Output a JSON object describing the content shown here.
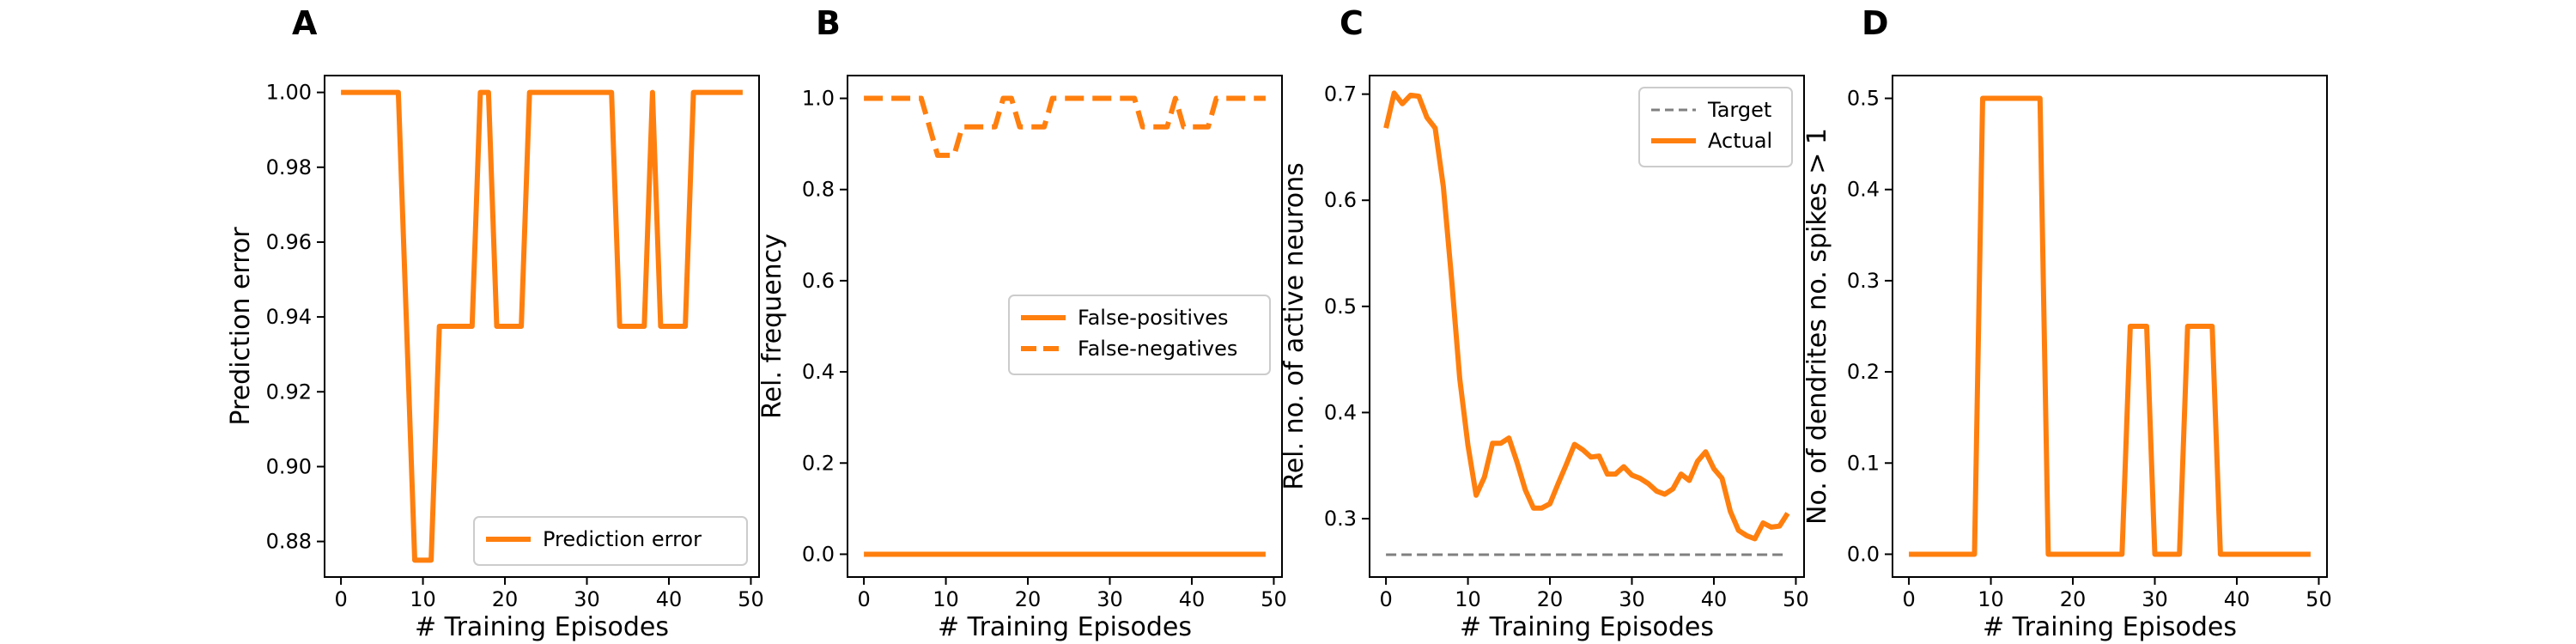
{
  "figure": {
    "background": "#ffffff",
    "accent": "#ff7f0e"
  },
  "chart_data": [
    {
      "panel": "A",
      "type": "line",
      "xlabel": "# Training Episodes",
      "ylabel": "Prediction error",
      "xlim": [
        -2,
        51
      ],
      "ylim": [
        0.8705,
        1.0045
      ],
      "xticks": [
        0,
        10,
        20,
        30,
        40,
        50
      ],
      "xtick_labels": [
        "0",
        "10",
        "20",
        "30",
        "40",
        "50"
      ],
      "yticks": [
        0.88,
        0.9,
        0.92,
        0.94,
        0.96,
        0.98,
        1.0
      ],
      "ytick_labels": [
        "0.88",
        "0.90",
        "0.92",
        "0.94",
        "0.96",
        "0.98",
        "1.00"
      ],
      "grid": false,
      "legend": {
        "placement": "lower-right"
      },
      "series": [
        {
          "name": "Prediction error",
          "color": "#ff7f0e",
          "style": "solid",
          "x": [
            0,
            1,
            2,
            3,
            4,
            5,
            6,
            7,
            8,
            9,
            10,
            11,
            12,
            13,
            14,
            15,
            16,
            17,
            18,
            19,
            20,
            21,
            22,
            23,
            24,
            25,
            26,
            27,
            28,
            29,
            30,
            31,
            32,
            33,
            34,
            35,
            36,
            37,
            38,
            39,
            40,
            41,
            42,
            43,
            44,
            45,
            46,
            47,
            48,
            49
          ],
          "y": [
            1,
            1,
            1,
            1,
            1,
            1,
            1,
            1,
            0.9375,
            0.875,
            0.875,
            0.875,
            0.9375,
            0.9375,
            0.9375,
            0.9375,
            0.9375,
            1,
            1,
            0.9375,
            0.9375,
            0.9375,
            0.9375,
            1,
            1,
            1,
            1,
            1,
            1,
            1,
            1,
            1,
            1,
            1,
            0.9375,
            0.9375,
            0.9375,
            0.9375,
            1,
            0.9375,
            0.9375,
            0.9375,
            0.9375,
            1,
            1,
            1,
            1,
            1,
            1,
            1
          ]
        }
      ]
    },
    {
      "panel": "B",
      "type": "line",
      "xlabel": "# Training Episodes",
      "ylabel": "Rel. frequency",
      "xlim": [
        -2,
        51
      ],
      "ylim": [
        -0.05,
        1.05
      ],
      "xticks": [
        0,
        10,
        20,
        30,
        40,
        50
      ],
      "xtick_labels": [
        "0",
        "10",
        "20",
        "30",
        "40",
        "50"
      ],
      "yticks": [
        0.0,
        0.2,
        0.4,
        0.6,
        0.8,
        1.0
      ],
      "ytick_labels": [
        "0.0",
        "0.2",
        "0.4",
        "0.6",
        "0.8",
        "1.0"
      ],
      "grid": false,
      "legend": {
        "placement": "center-right"
      },
      "series": [
        {
          "name": "False-positives",
          "color": "#ff7f0e",
          "style": "solid",
          "x": [
            0,
            1,
            2,
            3,
            4,
            5,
            6,
            7,
            8,
            9,
            10,
            11,
            12,
            13,
            14,
            15,
            16,
            17,
            18,
            19,
            20,
            21,
            22,
            23,
            24,
            25,
            26,
            27,
            28,
            29,
            30,
            31,
            32,
            33,
            34,
            35,
            36,
            37,
            38,
            39,
            40,
            41,
            42,
            43,
            44,
            45,
            46,
            47,
            48,
            49
          ],
          "y": [
            0,
            0,
            0,
            0,
            0,
            0,
            0,
            0,
            0,
            0,
            0,
            0,
            0,
            0,
            0,
            0,
            0,
            0,
            0,
            0,
            0,
            0,
            0,
            0,
            0,
            0,
            0,
            0,
            0,
            0,
            0,
            0,
            0,
            0,
            0,
            0,
            0,
            0,
            0,
            0,
            0,
            0,
            0,
            0,
            0,
            0,
            0,
            0,
            0,
            0
          ]
        },
        {
          "name": "False-negatives",
          "color": "#ff7f0e",
          "style": "dashed",
          "x": [
            0,
            1,
            2,
            3,
            4,
            5,
            6,
            7,
            8,
            9,
            10,
            11,
            12,
            13,
            14,
            15,
            16,
            17,
            18,
            19,
            20,
            21,
            22,
            23,
            24,
            25,
            26,
            27,
            28,
            29,
            30,
            31,
            32,
            33,
            34,
            35,
            36,
            37,
            38,
            39,
            40,
            41,
            42,
            43,
            44,
            45,
            46,
            47,
            48,
            49
          ],
          "y": [
            1,
            1,
            1,
            1,
            1,
            1,
            1,
            1,
            0.9375,
            0.875,
            0.875,
            0.875,
            0.9375,
            0.9375,
            0.9375,
            0.9375,
            0.9375,
            1,
            1,
            0.9375,
            0.9375,
            0.9375,
            0.9375,
            1,
            1,
            1,
            1,
            1,
            1,
            1,
            1,
            1,
            1,
            1,
            0.9375,
            0.9375,
            0.9375,
            0.9375,
            1,
            0.9375,
            0.9375,
            0.9375,
            0.9375,
            1,
            1,
            1,
            1,
            1,
            1,
            1
          ]
        }
      ]
    },
    {
      "panel": "C",
      "type": "line",
      "xlabel": "# Training Episodes",
      "ylabel": "Rel. no. of active neurons",
      "xlim": [
        -2,
        51
      ],
      "ylim": [
        0.245,
        0.7175
      ],
      "xticks": [
        0,
        10,
        20,
        30,
        40,
        50
      ],
      "xtick_labels": [
        "0",
        "10",
        "20",
        "30",
        "40",
        "50"
      ],
      "yticks": [
        0.3,
        0.4,
        0.5,
        0.6,
        0.7
      ],
      "ytick_labels": [
        "0.3",
        "0.4",
        "0.5",
        "0.6",
        "0.7"
      ],
      "grid": false,
      "legend": {
        "placement": "top-right"
      },
      "series": [
        {
          "name": "Target",
          "color": "#808080",
          "style": "dashed",
          "x": [
            0,
            49
          ],
          "y": [
            0.266,
            0.266
          ]
        },
        {
          "name": "Actual",
          "color": "#ff7f0e",
          "style": "solid",
          "x": [
            0,
            1,
            2,
            3,
            4,
            5,
            6,
            7,
            8,
            9,
            10,
            11,
            12,
            13,
            14,
            15,
            16,
            17,
            18,
            19,
            20,
            21,
            22,
            23,
            24,
            25,
            26,
            27,
            28,
            29,
            30,
            31,
            32,
            33,
            34,
            35,
            36,
            37,
            38,
            39,
            40,
            41,
            42,
            43,
            44,
            45,
            46,
            47,
            48,
            49
          ],
          "y": [
            0.668,
            0.701,
            0.691,
            0.699,
            0.698,
            0.678,
            0.668,
            0.613,
            0.526,
            0.432,
            0.369,
            0.322,
            0.339,
            0.371,
            0.371,
            0.376,
            0.353,
            0.327,
            0.31,
            0.31,
            0.314,
            0.333,
            0.351,
            0.37,
            0.365,
            0.358,
            0.359,
            0.342,
            0.342,
            0.349,
            0.341,
            0.338,
            0.333,
            0.326,
            0.323,
            0.328,
            0.342,
            0.336,
            0.354,
            0.363,
            0.347,
            0.338,
            0.307,
            0.289,
            0.284,
            0.281,
            0.296,
            0.292,
            0.293,
            0.305
          ]
        }
      ]
    },
    {
      "panel": "D",
      "type": "line",
      "xlabel": "# Training Episodes",
      "ylabel": "No. of dendrites no. spikes > 1",
      "xlim": [
        -2,
        51
      ],
      "ylim": [
        -0.025,
        0.525
      ],
      "xticks": [
        0,
        10,
        20,
        30,
        40,
        50
      ],
      "xtick_labels": [
        "0",
        "10",
        "20",
        "30",
        "40",
        "50"
      ],
      "yticks": [
        0.0,
        0.1,
        0.2,
        0.3,
        0.4,
        0.5
      ],
      "ytick_labels": [
        "0.0",
        "0.1",
        "0.2",
        "0.3",
        "0.4",
        "0.5"
      ],
      "grid": false,
      "legend": null,
      "series": [
        {
          "color": "#ff7f0e",
          "style": "solid",
          "x": [
            0,
            1,
            2,
            3,
            4,
            5,
            6,
            7,
            8,
            9,
            10,
            11,
            12,
            13,
            14,
            15,
            16,
            17,
            18,
            19,
            20,
            21,
            22,
            23,
            24,
            25,
            26,
            27,
            28,
            29,
            30,
            31,
            32,
            33,
            34,
            35,
            36,
            37,
            38,
            39,
            40,
            41,
            42,
            43,
            44,
            45,
            46,
            47,
            48,
            49
          ],
          "y": [
            0,
            0,
            0,
            0,
            0,
            0,
            0,
            0,
            0,
            0.5,
            0.5,
            0.5,
            0.5,
            0.5,
            0.5,
            0.5,
            0.5,
            0,
            0,
            0,
            0,
            0,
            0,
            0,
            0,
            0,
            0,
            0.25,
            0.25,
            0.25,
            0,
            0,
            0,
            0,
            0.25,
            0.25,
            0.25,
            0.25,
            0,
            0,
            0,
            0,
            0,
            0,
            0,
            0,
            0,
            0,
            0,
            0
          ]
        }
      ]
    }
  ]
}
